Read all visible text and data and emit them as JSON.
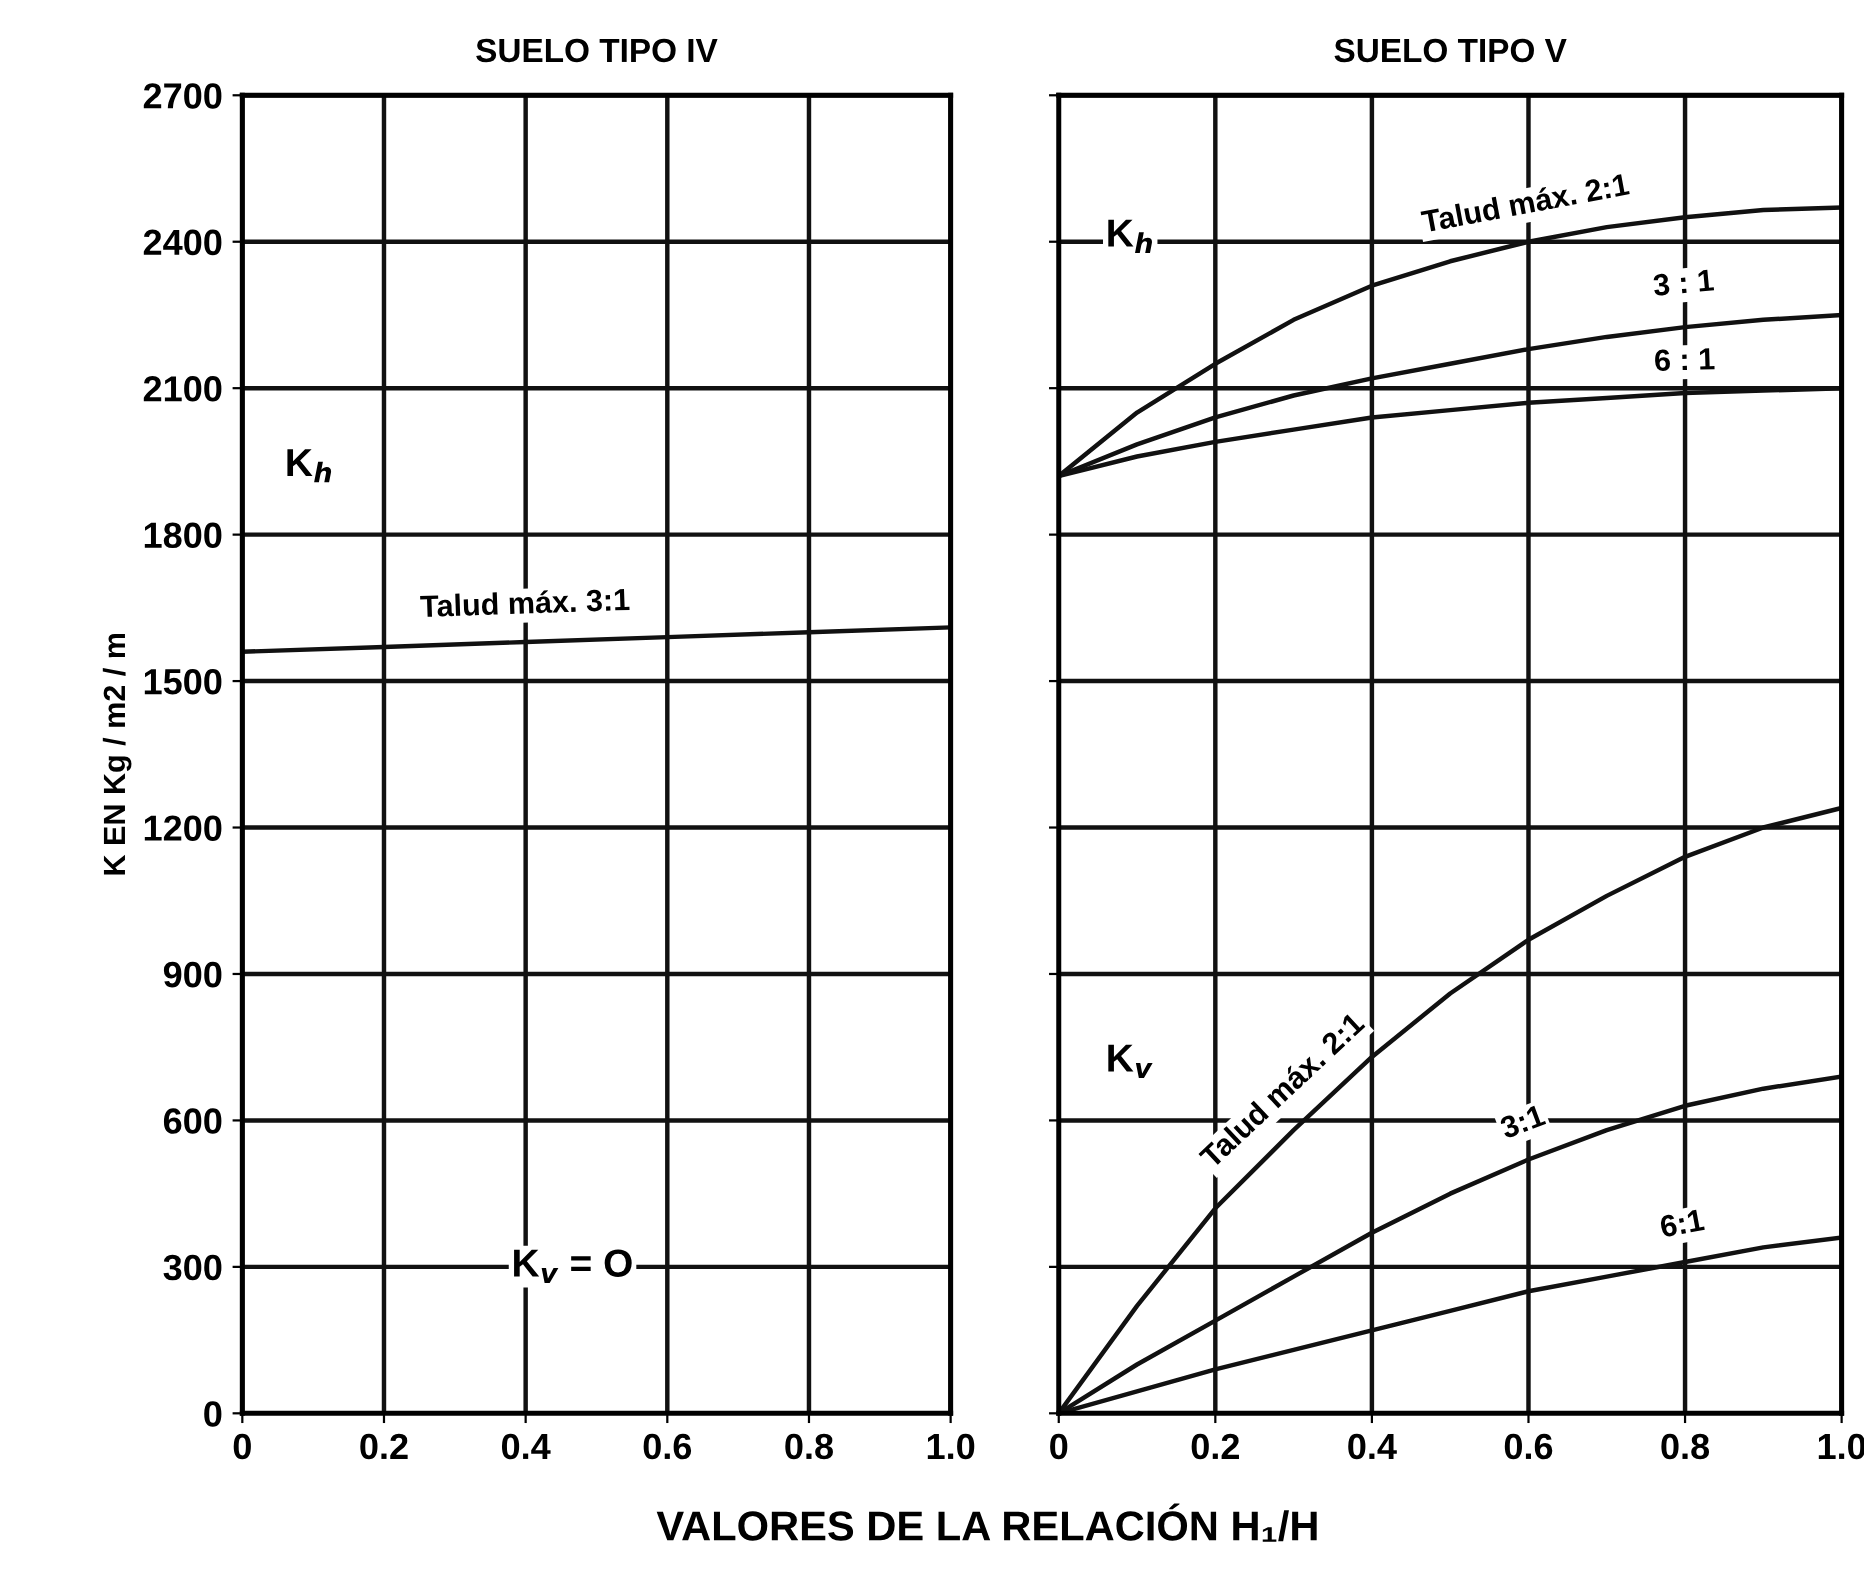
{
  "chart_data": [
    {
      "type": "line",
      "title": "SUELO TIPO IV",
      "ylabel": "K EN Kg / m2 / m",
      "xlabel": "VALORES DE LA RELACIÓN H₁/H",
      "x": [
        0,
        0.2,
        0.4,
        0.6,
        0.8,
        1.0
      ],
      "series": [
        {
          "name": "Talud máx. 3:1",
          "color": "#111111",
          "values": [
            1560,
            1570,
            1580,
            1590,
            1600,
            1610
          ]
        }
      ],
      "annotations": [
        "K$_{h}$",
        "K$_{v}$ = O"
      ],
      "xlim": [
        0,
        1.0
      ],
      "ylim": [
        0,
        2700
      ],
      "xticks": [
        0,
        0.2,
        0.4,
        0.6,
        0.8,
        {
          "value": 1.0,
          "label": "1.0"
        }
      ],
      "yticks": [
        0,
        300,
        600,
        900,
        1200,
        1500,
        1800,
        2100,
        2400,
        2700
      ],
      "grid": true,
      "legend": false,
      "marker": "none",
      "line_style": "solid"
    },
    {
      "type": "line",
      "title": "SUELO TIPO V",
      "x": [
        0,
        0.1,
        0.2,
        0.3,
        0.4,
        0.5,
        0.6,
        0.7,
        0.8,
        0.9,
        1.0
      ],
      "series": [
        {
          "name": "Talud máx. 2:1",
          "color": "#111111",
          "values": [
            1920,
            2050,
            2150,
            2240,
            2310,
            2360,
            2400,
            2430,
            2450,
            2465,
            2470
          ]
        },
        {
          "name": "3 : 1",
          "color": "#111111",
          "values": [
            1920,
            1985,
            2040,
            2085,
            2120,
            2150,
            2180,
            2205,
            2225,
            2240,
            2250
          ]
        },
        {
          "name": "6 : 1",
          "color": "#111111",
          "values": [
            1920,
            1960,
            1990,
            2015,
            2040,
            2055,
            2070,
            2080,
            2090,
            2095,
            2100
          ]
        },
        {
          "name": "Talud máx. 2:1",
          "color": "#111111",
          "values": [
            0,
            220,
            420,
            580,
            730,
            860,
            970,
            1060,
            1140,
            1200,
            1240
          ]
        },
        {
          "name": "3:1",
          "color": "#111111",
          "values": [
            0,
            100,
            190,
            280,
            370,
            450,
            520,
            580,
            630,
            665,
            690
          ]
        },
        {
          "name": "6:1",
          "color": "#111111",
          "values": [
            0,
            45,
            90,
            130,
            170,
            210,
            250,
            280,
            310,
            340,
            360
          ]
        }
      ],
      "annotations": [
        "K$_{h}$",
        "K$_{v}$"
      ],
      "xlim": [
        0,
        1.0
      ],
      "ylim": [
        0,
        2700
      ],
      "xticks": [
        0,
        0.2,
        0.4,
        0.6,
        0.8,
        {
          "value": 1.0,
          "label": "1.0"
        }
      ],
      "yticks": [
        0,
        300,
        600,
        900,
        1200,
        1500,
        1800,
        2100,
        2400,
        2700
      ],
      "tick_labels": "x",
      "grid": true,
      "legend": false,
      "marker": "none",
      "line_style": "solid"
    }
  ]
}
